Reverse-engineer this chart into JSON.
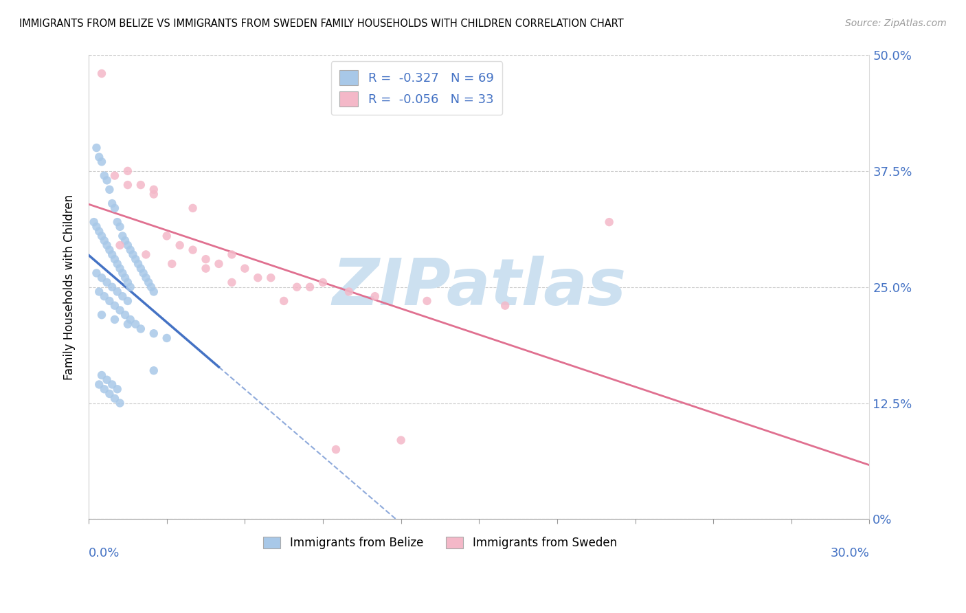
{
  "title": "IMMIGRANTS FROM BELIZE VS IMMIGRANTS FROM SWEDEN FAMILY HOUSEHOLDS WITH CHILDREN CORRELATION CHART",
  "source": "Source: ZipAtlas.com",
  "legend_belize": "Immigrants from Belize",
  "legend_sweden": "Immigrants from Sweden",
  "r_belize": -0.327,
  "n_belize": 69,
  "r_sweden": -0.056,
  "n_sweden": 33,
  "color_belize": "#a8c8e8",
  "color_sweden": "#f4b8c8",
  "line_color_belize": "#4472c4",
  "line_color_sweden": "#e07090",
  "watermark_color": "#cce0f0",
  "xlim": [
    0.0,
    30.0
  ],
  "ylim": [
    0.0,
    50.0
  ],
  "belize_x": [
    0.3,
    0.4,
    0.5,
    0.6,
    0.7,
    0.8,
    0.9,
    1.0,
    1.1,
    1.2,
    1.3,
    1.4,
    1.5,
    1.6,
    1.7,
    1.8,
    1.9,
    2.0,
    2.1,
    2.2,
    2.3,
    2.4,
    2.5,
    0.2,
    0.3,
    0.4,
    0.5,
    0.6,
    0.7,
    0.8,
    0.9,
    1.0,
    1.1,
    1.2,
    1.3,
    1.4,
    1.5,
    1.6,
    0.3,
    0.5,
    0.7,
    0.9,
    1.1,
    1.3,
    1.5,
    0.4,
    0.6,
    0.8,
    1.0,
    1.2,
    1.4,
    1.6,
    1.8,
    0.5,
    1.0,
    1.5,
    2.0,
    2.5,
    3.0,
    0.4,
    0.6,
    0.8,
    1.0,
    1.2,
    2.5,
    0.5,
    0.7,
    0.9,
    1.1
  ],
  "belize_y": [
    40.0,
    39.0,
    38.5,
    37.0,
    36.5,
    35.5,
    34.0,
    33.5,
    32.0,
    31.5,
    30.5,
    30.0,
    29.5,
    29.0,
    28.5,
    28.0,
    27.5,
    27.0,
    26.5,
    26.0,
    25.5,
    25.0,
    24.5,
    32.0,
    31.5,
    31.0,
    30.5,
    30.0,
    29.5,
    29.0,
    28.5,
    28.0,
    27.5,
    27.0,
    26.5,
    26.0,
    25.5,
    25.0,
    26.5,
    26.0,
    25.5,
    25.0,
    24.5,
    24.0,
    23.5,
    24.5,
    24.0,
    23.5,
    23.0,
    22.5,
    22.0,
    21.5,
    21.0,
    22.0,
    21.5,
    21.0,
    20.5,
    20.0,
    19.5,
    14.5,
    14.0,
    13.5,
    13.0,
    12.5,
    16.0,
    15.5,
    15.0,
    14.5,
    14.0
  ],
  "sweden_x": [
    0.5,
    1.0,
    1.5,
    2.0,
    2.5,
    3.0,
    3.5,
    4.0,
    4.5,
    5.0,
    5.5,
    6.0,
    7.0,
    8.0,
    9.0,
    10.0,
    11.0,
    13.0,
    16.0,
    20.0,
    1.2,
    2.2,
    3.2,
    4.5,
    6.5,
    8.5,
    1.5,
    2.5,
    4.0,
    5.5,
    7.5,
    12.0,
    9.5
  ],
  "sweden_y": [
    48.0,
    37.0,
    37.5,
    36.0,
    35.0,
    30.5,
    29.5,
    29.0,
    28.0,
    27.5,
    28.5,
    27.0,
    26.0,
    25.0,
    25.5,
    24.5,
    24.0,
    23.5,
    23.0,
    32.0,
    29.5,
    28.5,
    27.5,
    27.0,
    26.0,
    25.0,
    36.0,
    35.5,
    33.5,
    25.5,
    23.5,
    8.5,
    7.5
  ]
}
